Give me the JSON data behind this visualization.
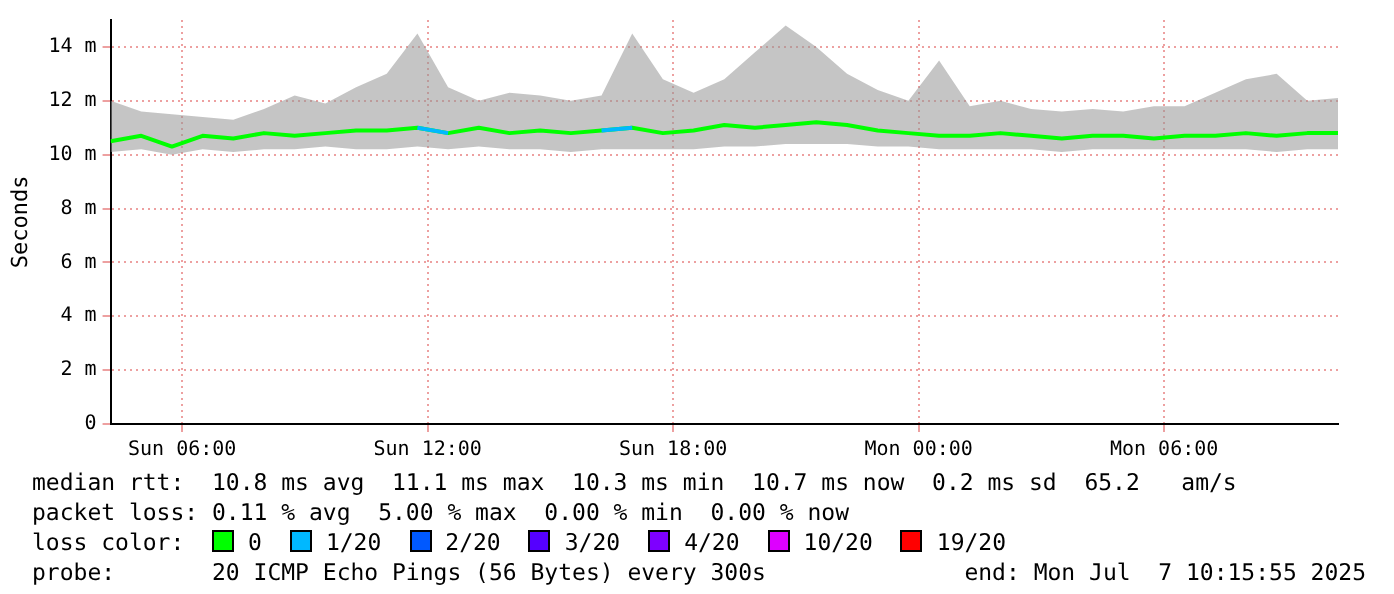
{
  "chart_data": {
    "type": "line",
    "ylabel": "Seconds",
    "x": [
      "2025-07-06T04:15",
      "2025-07-06T05:00",
      "2025-07-06T05:45",
      "2025-07-06T06:30",
      "2025-07-06T07:15",
      "2025-07-06T08:00",
      "2025-07-06T08:45",
      "2025-07-06T09:30",
      "2025-07-06T10:15",
      "2025-07-06T11:00",
      "2025-07-06T11:45",
      "2025-07-06T12:30",
      "2025-07-06T13:15",
      "2025-07-06T14:00",
      "2025-07-06T14:45",
      "2025-07-06T15:30",
      "2025-07-06T16:15",
      "2025-07-06T17:00",
      "2025-07-06T17:45",
      "2025-07-06T18:30",
      "2025-07-06T19:15",
      "2025-07-06T20:00",
      "2025-07-06T20:45",
      "2025-07-06T21:30",
      "2025-07-06T22:15",
      "2025-07-06T23:00",
      "2025-07-06T23:45",
      "2025-07-07T00:30",
      "2025-07-07T01:15",
      "2025-07-07T02:00",
      "2025-07-07T02:45",
      "2025-07-07T03:30",
      "2025-07-07T04:15",
      "2025-07-07T05:00",
      "2025-07-07T05:45",
      "2025-07-07T06:30",
      "2025-07-07T07:15",
      "2025-07-07T08:00",
      "2025-07-07T08:45",
      "2025-07-07T09:30",
      "2025-07-07T10:15"
    ],
    "series": [
      {
        "name": "0",
        "color": "#00ff00",
        "values": [
          10.5,
          10.7,
          10.3,
          10.7,
          10.6,
          10.8,
          10.7,
          10.8,
          10.9,
          10.9,
          11.0,
          10.8,
          11.0,
          10.8,
          10.9,
          10.8,
          10.9,
          11.0,
          10.8,
          10.9,
          11.1,
          11.0,
          11.1,
          11.2,
          11.1,
          10.9,
          10.8,
          10.7,
          10.7,
          10.8,
          10.7,
          10.6,
          10.7,
          10.7,
          10.6,
          10.7,
          10.7,
          10.8,
          10.7,
          10.8,
          10.8
        ],
        "lower": [
          10.1,
          10.2,
          10.0,
          10.2,
          10.1,
          10.2,
          10.2,
          10.3,
          10.2,
          10.2,
          10.3,
          10.2,
          10.3,
          10.2,
          10.2,
          10.1,
          10.2,
          10.2,
          10.2,
          10.2,
          10.3,
          10.3,
          10.4,
          10.4,
          10.4,
          10.3,
          10.3,
          10.2,
          10.2,
          10.2,
          10.2,
          10.1,
          10.2,
          10.2,
          10.2,
          10.2,
          10.2,
          10.2,
          10.1,
          10.2,
          10.2
        ],
        "upper": [
          12.0,
          11.6,
          11.5,
          11.4,
          11.3,
          11.7,
          12.2,
          11.9,
          12.5,
          13.0,
          14.5,
          12.5,
          12.0,
          12.3,
          12.2,
          12.0,
          12.2,
          14.5,
          12.8,
          12.3,
          12.8,
          13.8,
          14.8,
          14.0,
          13.0,
          12.4,
          12.0,
          13.5,
          11.8,
          12.0,
          11.7,
          11.6,
          11.7,
          11.6,
          11.8,
          11.8,
          12.3,
          12.8,
          13.0,
          12.0,
          12.1
        ]
      },
      {
        "name": "1/20",
        "color": "#00b8ff",
        "values": [
          null,
          null,
          null,
          null,
          null,
          null,
          null,
          null,
          null,
          null,
          11.0,
          10.8,
          null,
          null,
          null,
          null,
          10.9,
          11.0,
          null,
          null,
          null,
          null,
          null,
          null,
          null,
          null,
          null,
          null,
          null,
          null,
          null,
          null,
          null,
          null,
          null,
          null,
          null,
          null,
          null,
          null,
          null
        ]
      },
      {
        "name": "2/20",
        "color": "#0059ff",
        "values": [
          null,
          null,
          null,
          null,
          null,
          null,
          null,
          null,
          null,
          null,
          null,
          null,
          null,
          null,
          null,
          null,
          null,
          null,
          null,
          null,
          null,
          null,
          null,
          null,
          null,
          null,
          null,
          null,
          null,
          null,
          null,
          null,
          null,
          null,
          null,
          null,
          null,
          null,
          null,
          null,
          null
        ]
      },
      {
        "name": "3/20",
        "color": "#5500ff",
        "values": [
          null,
          null,
          null,
          null,
          null,
          null,
          null,
          null,
          null,
          null,
          null,
          null,
          null,
          null,
          null,
          null,
          null,
          null,
          null,
          null,
          null,
          null,
          null,
          null,
          null,
          null,
          null,
          null,
          null,
          null,
          null,
          null,
          null,
          null,
          null,
          null,
          null,
          null,
          null,
          null,
          null
        ]
      },
      {
        "name": "4/20",
        "color": "#7e00ff",
        "values": [
          null,
          null,
          null,
          null,
          null,
          null,
          null,
          null,
          null,
          null,
          null,
          null,
          null,
          null,
          null,
          null,
          null,
          null,
          null,
          null,
          null,
          null,
          null,
          null,
          null,
          null,
          null,
          null,
          null,
          null,
          null,
          null,
          null,
          null,
          null,
          null,
          null,
          null,
          null,
          null,
          null
        ]
      },
      {
        "name": "10/20",
        "color": "#dd00ff",
        "values": [
          null,
          null,
          null,
          null,
          null,
          null,
          null,
          null,
          null,
          null,
          null,
          null,
          null,
          null,
          null,
          null,
          null,
          null,
          null,
          null,
          null,
          null,
          null,
          null,
          null,
          null,
          null,
          null,
          null,
          null,
          null,
          null,
          null,
          null,
          null,
          null,
          null,
          null,
          null,
          null,
          null
        ]
      },
      {
        "name": "19/20",
        "color": "#ff0000",
        "values": [
          null,
          null,
          null,
          null,
          null,
          null,
          null,
          null,
          null,
          null,
          null,
          null,
          null,
          null,
          null,
          null,
          null,
          null,
          null,
          null,
          null,
          null,
          null,
          null,
          null,
          null,
          null,
          null,
          null,
          null,
          null,
          null,
          null,
          null,
          null,
          null,
          null,
          null,
          null,
          null,
          null
        ]
      }
    ],
    "xlim": [
      "2025-07-06T04:15",
      "2025-07-07T10:15"
    ],
    "xticks": [
      {
        "value": "2025-07-06T06:00",
        "label": "Sun 06:00"
      },
      {
        "value": "2025-07-06T12:00",
        "label": "Sun 12:00"
      },
      {
        "value": "2025-07-06T18:00",
        "label": "Sun 18:00"
      },
      {
        "value": "2025-07-07T00:00",
        "label": "Mon 00:00"
      },
      {
        "value": "2025-07-07T06:00",
        "label": "Mon 06:00"
      }
    ],
    "ylim": [
      0,
      15
    ],
    "yticks": [
      0,
      {
        "value": 2,
        "label": "2 m"
      },
      {
        "value": 4,
        "label": "4 m"
      },
      {
        "value": 6,
        "label": "6 m"
      },
      {
        "value": 8,
        "label": "8 m"
      },
      {
        "value": 10,
        "label": "10 m"
      },
      {
        "value": 12,
        "label": "12 m"
      },
      {
        "value": 14,
        "label": "14 m"
      }
    ],
    "grid": true,
    "legend": "bottom",
    "legend_title": "loss color:",
    "annotations": [
      "median rtt:  10.8 ms avg  11.1 ms max  10.3 ms min  10.7 ms now  0.2 ms sd  65.2   am/s",
      "packet loss: 0.11 % avg  5.00 % max  0.00 % min  0.00 % now",
      "probe:       20 ICMP Echo Pings (56 Bytes) every 300s",
      "end: Mon Jul  7 10:15:55 2025"
    ]
  }
}
